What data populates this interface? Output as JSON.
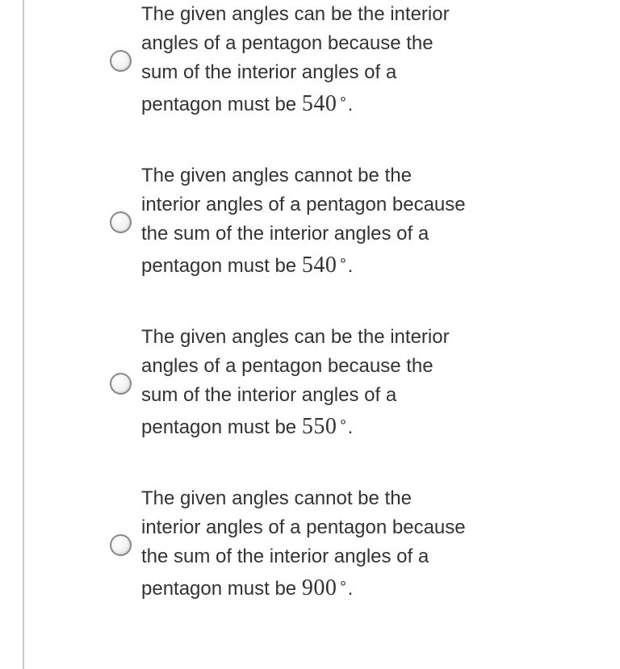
{
  "question": {
    "options": [
      {
        "text_prefix": "The given angles can be the interior angles of a pentagon because the sum of the interior angles of a pentagon must be ",
        "value": "540",
        "suffix": "."
      },
      {
        "text_prefix": "The given angles cannot be the interior angles of a pentagon because the sum of the interior angles of a pentagon must be ",
        "value": "540",
        "suffix": "."
      },
      {
        "text_prefix": "The given angles can be the interior angles of a pentagon because the sum of the interior angles of a pentagon must be ",
        "value": "550",
        "suffix": "."
      },
      {
        "text_prefix": "The given angles cannot be the interior angles of a pentagon because the sum of the interior angles of a pentagon must be ",
        "value": "900",
        "suffix": "."
      }
    ]
  },
  "styling": {
    "text_color": "#333333",
    "border_color": "#cccccc",
    "radio_border_color": "#888888",
    "background_color": "#ffffff",
    "text_fontsize": 24,
    "math_fontsize": 28
  }
}
